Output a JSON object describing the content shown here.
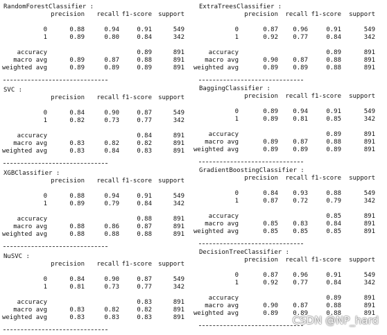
{
  "columns": [
    [
      {
        "name": "RandomForestClassifier :",
        "header": [
          "precision",
          "recall",
          "f1-score",
          "support"
        ],
        "rows": [
          {
            "label": "0",
            "cells": [
              "0.88",
              "0.94",
              "0.91",
              "549"
            ]
          },
          {
            "label": "1",
            "cells": [
              "0.89",
              "0.80",
              "0.84",
              "342"
            ]
          },
          {
            "label": "accuracy",
            "cells": [
              "0.89",
              "891"
            ]
          },
          {
            "label": "macro avg",
            "cells": [
              "0.89",
              "0.87",
              "0.88",
              "891"
            ]
          },
          {
            "label": "weighted avg",
            "cells": [
              "0.89",
              "0.89",
              "0.89",
              "891"
            ]
          }
        ]
      },
      {
        "name": "SVC :",
        "header": [
          "precision",
          "recall",
          "f1-score",
          "support"
        ],
        "rows": [
          {
            "label": "0",
            "cells": [
              "0.84",
              "0.90",
              "0.87",
              "549"
            ]
          },
          {
            "label": "1",
            "cells": [
              "0.82",
              "0.73",
              "0.77",
              "342"
            ]
          },
          {
            "label": "accuracy",
            "cells": [
              "0.84",
              "891"
            ]
          },
          {
            "label": "macro avg",
            "cells": [
              "0.83",
              "0.82",
              "0.82",
              "891"
            ]
          },
          {
            "label": "weighted avg",
            "cells": [
              "0.83",
              "0.84",
              "0.83",
              "891"
            ]
          }
        ]
      },
      {
        "name": "XGBClassifier :",
        "header": [
          "precision",
          "recall",
          "f1-score",
          "support"
        ],
        "rows": [
          {
            "label": "0",
            "cells": [
              "0.88",
              "0.94",
              "0.91",
              "549"
            ]
          },
          {
            "label": "1",
            "cells": [
              "0.89",
              "0.79",
              "0.84",
              "342"
            ]
          },
          {
            "label": "accuracy",
            "cells": [
              "0.88",
              "891"
            ]
          },
          {
            "label": "macro avg",
            "cells": [
              "0.88",
              "0.86",
              "0.87",
              "891"
            ]
          },
          {
            "label": "weighted avg",
            "cells": [
              "0.88",
              "0.88",
              "0.88",
              "891"
            ]
          }
        ]
      },
      {
        "name": "NuSVC :",
        "header": [
          "precision",
          "recall",
          "f1-score",
          "support"
        ],
        "rows": [
          {
            "label": "0",
            "cells": [
              "0.84",
              "0.90",
              "0.87",
              "549"
            ]
          },
          {
            "label": "1",
            "cells": [
              "0.81",
              "0.73",
              "0.77",
              "342"
            ]
          },
          {
            "label": "accuracy",
            "cells": [
              "0.83",
              "891"
            ]
          },
          {
            "label": "macro avg",
            "cells": [
              "0.83",
              "0.82",
              "0.82",
              "891"
            ]
          },
          {
            "label": "weighted avg",
            "cells": [
              "0.83",
              "0.83",
              "0.83",
              "891"
            ]
          }
        ]
      }
    ],
    [
      {
        "name": "ExtraTreesClassifier :",
        "header": [
          "precision",
          "recall",
          "f1-score",
          "support"
        ],
        "rows": [
          {
            "label": "0",
            "cells": [
              "0.87",
              "0.96",
              "0.91",
              "549"
            ]
          },
          {
            "label": "1",
            "cells": [
              "0.92",
              "0.77",
              "0.84",
              "342"
            ]
          },
          {
            "label": "accuracy",
            "cells": [
              "0.89",
              "891"
            ]
          },
          {
            "label": "macro avg",
            "cells": [
              "0.90",
              "0.87",
              "0.88",
              "891"
            ]
          },
          {
            "label": "weighted avg",
            "cells": [
              "0.89",
              "0.89",
              "0.88",
              "891"
            ]
          }
        ]
      },
      {
        "name": "BaggingClassifier :",
        "header": [
          "precision",
          "recall",
          "f1-score",
          "support"
        ],
        "rows": [
          {
            "label": "0",
            "cells": [
              "0.89",
              "0.94",
              "0.91",
              "549"
            ]
          },
          {
            "label": "1",
            "cells": [
              "0.89",
              "0.81",
              "0.85",
              "342"
            ]
          },
          {
            "label": "accuracy",
            "cells": [
              "0.89",
              "891"
            ]
          },
          {
            "label": "macro avg",
            "cells": [
              "0.89",
              "0.87",
              "0.88",
              "891"
            ]
          },
          {
            "label": "weighted avg",
            "cells": [
              "0.89",
              "0.89",
              "0.89",
              "891"
            ]
          }
        ]
      },
      {
        "name": "GradientBoostingClassifier :",
        "header": [
          "precision",
          "recall",
          "f1-score",
          "support"
        ],
        "rows": [
          {
            "label": "0",
            "cells": [
              "0.84",
              "0.93",
              "0.88",
              "549"
            ]
          },
          {
            "label": "1",
            "cells": [
              "0.87",
              "0.72",
              "0.79",
              "342"
            ]
          },
          {
            "label": "accuracy",
            "cells": [
              "0.85",
              "891"
            ]
          },
          {
            "label": "macro avg",
            "cells": [
              "0.85",
              "0.83",
              "0.84",
              "891"
            ]
          },
          {
            "label": "weighted avg",
            "cells": [
              "0.85",
              "0.85",
              "0.85",
              "891"
            ]
          }
        ]
      },
      {
        "name": "DecisionTreeClassifier :",
        "header": [
          "precision",
          "recall",
          "f1-score",
          "support"
        ],
        "rows": [
          {
            "label": "0",
            "cells": [
              "0.87",
              "0.96",
              "0.91",
              "549"
            ]
          },
          {
            "label": "1",
            "cells": [
              "0.92",
              "0.77",
              "0.84",
              "342"
            ]
          },
          {
            "label": "accuracy",
            "cells": [
              "0.89",
              "891"
            ]
          },
          {
            "label": "macro avg",
            "cells": [
              "0.90",
              "0.87",
              "0.88",
              "891"
            ]
          },
          {
            "label": "weighted avg",
            "cells": [
              "0.89",
              "0.89",
              "0.88",
              "891"
            ]
          }
        ]
      }
    ]
  ],
  "watermark": "CSDN @NP_hard"
}
